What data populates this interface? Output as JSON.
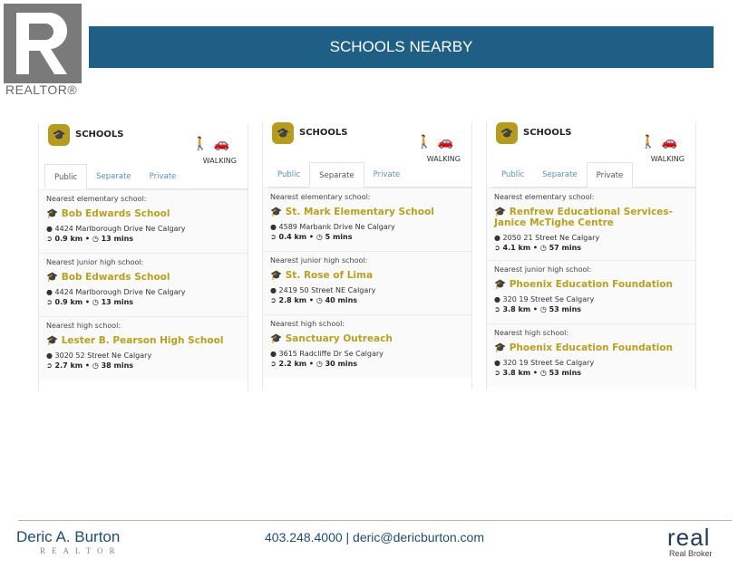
{
  "logo": {
    "text": "REALTOR®",
    "letter": "R"
  },
  "banner": {
    "title": "SCHOOLS NEARBY"
  },
  "panels": [
    {
      "title": "SCHOOLS",
      "mode": "WALKING",
      "tabs": [
        "Public",
        "Separate",
        "Private"
      ],
      "active_tab": 0,
      "entries": [
        {
          "level": "Nearest elementary school:",
          "name": "Bob Edwards School",
          "address": "4424 Marlborough Drive Ne Calgary",
          "distance": "0.9 km",
          "time": "13 mins"
        },
        {
          "level": "Nearest junior high school:",
          "name": "Bob Edwards School",
          "address": "4424 Marlborough Drive Ne Calgary",
          "distance": "0.9 km",
          "time": "13 mins"
        },
        {
          "level": "Nearest high school:",
          "name": "Lester B. Pearson High School",
          "address": "3020 52 Street Ne Calgary",
          "distance": "2.7 km",
          "time": "38 mins"
        }
      ]
    },
    {
      "title": "SCHOOLS",
      "mode": "WALKING",
      "tabs": [
        "Public",
        "Separate",
        "Private"
      ],
      "active_tab": 1,
      "entries": [
        {
          "level": "Nearest elementary school:",
          "name": "St. Mark Elementary School",
          "address": "4589 Marbank Drive Ne Calgary",
          "distance": "0.4 km",
          "time": "5 mins"
        },
        {
          "level": "Nearest junior high school:",
          "name": "St. Rose of Lima",
          "address": "2419 50 Street NE Calgary",
          "distance": "2.8 km",
          "time": "40 mins"
        },
        {
          "level": "Nearest high school:",
          "name": "Sanctuary Outreach",
          "address": "3615 Radcliffe Dr Se Calgary",
          "distance": "2.2 km",
          "time": "30 mins"
        }
      ]
    },
    {
      "title": "SCHOOLS",
      "mode": "WALKING",
      "tabs": [
        "Public",
        "Separate",
        "Private"
      ],
      "active_tab": 2,
      "entries": [
        {
          "level": "Nearest elementary school:",
          "name": "Renfrew Educational Services-Janice McTighe Centre",
          "address": "2050 21 Street Ne Calgary",
          "distance": "4.1 km",
          "time": "57 mins"
        },
        {
          "level": "Nearest junior high school:",
          "name": "Phoenix Education Foundation",
          "address": "320 19 Street Se Calgary",
          "distance": "3.8 km",
          "time": "53 mins"
        },
        {
          "level": "Nearest high school:",
          "name": "Phoenix Education Foundation",
          "address": "320 19 Street Se Calgary",
          "distance": "3.8 km",
          "time": "53 mins"
        }
      ]
    }
  ],
  "footer": {
    "name": "Deric A. Burton",
    "role": "REALTOR",
    "contact": "403.248.4000 | deric@dericburton.com",
    "brand_logo": "real",
    "brand": "Real Broker"
  },
  "colors": {
    "banner": "#1f5f86",
    "accent": "#b8a020",
    "footer_text": "#1f4d6b"
  }
}
